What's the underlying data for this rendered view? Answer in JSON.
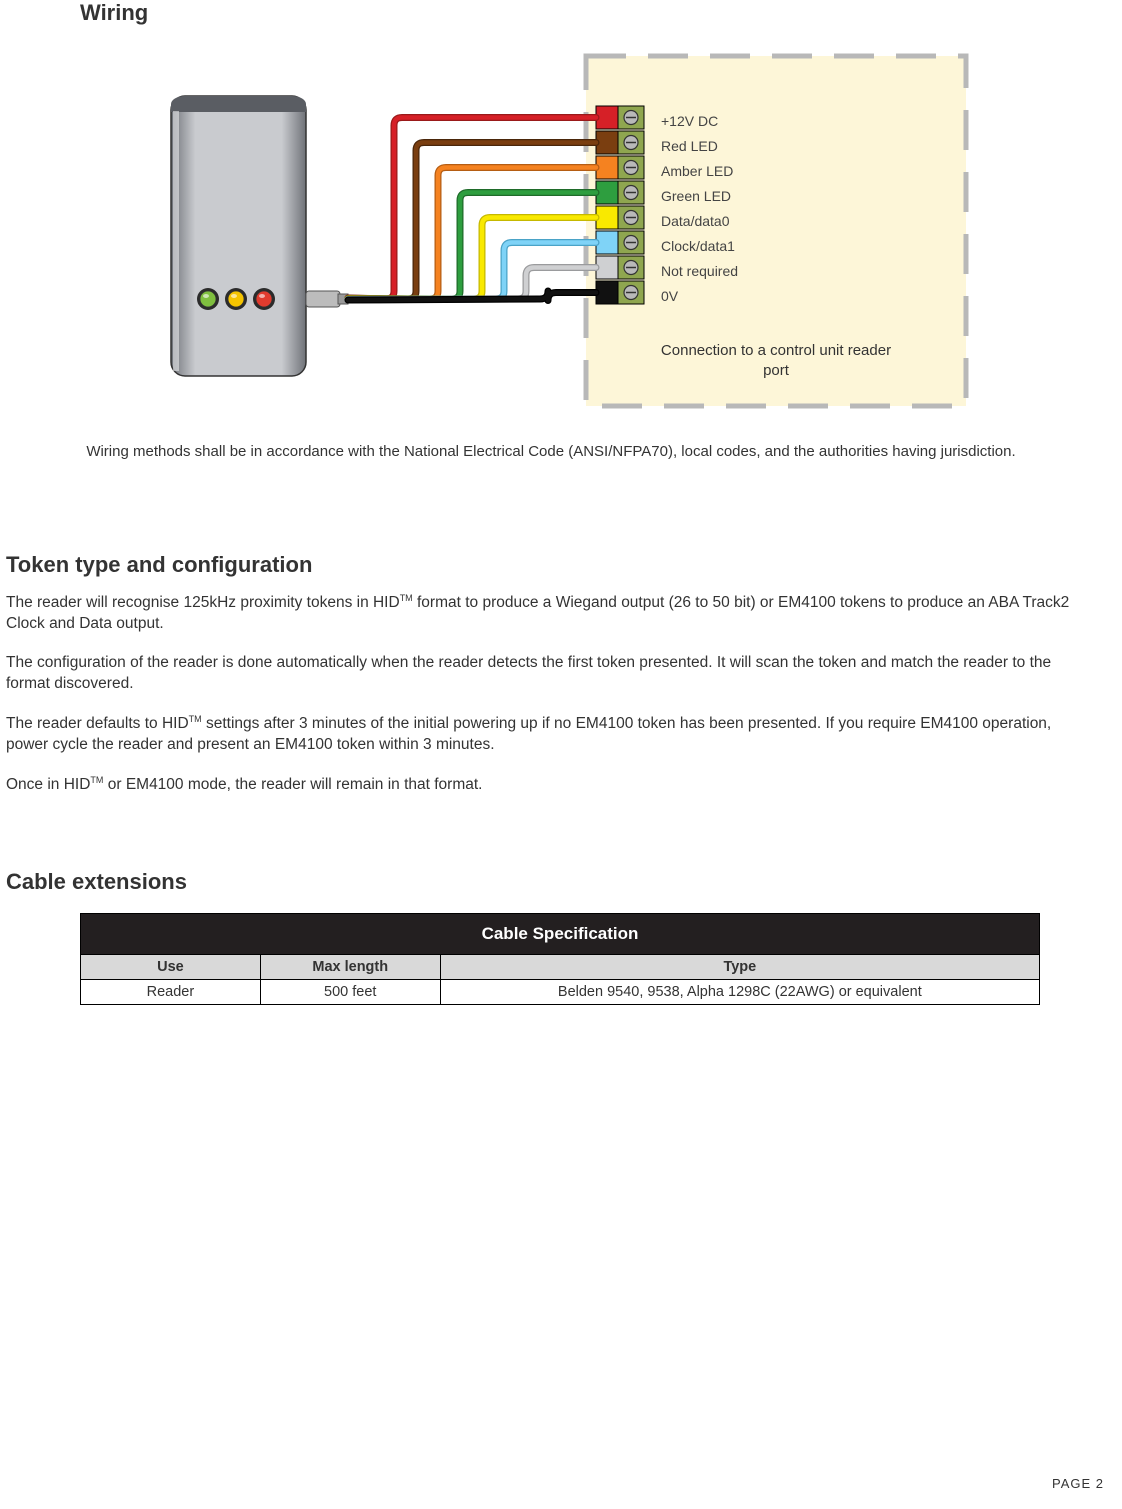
{
  "headings": {
    "wiring": "Wiring",
    "token": "Token type and configuration",
    "cable": "Cable extensions"
  },
  "diagram": {
    "terminals": [
      {
        "label": "+12V DC",
        "block_fill": "#d62027",
        "wire_stroke": "#d62027",
        "wire_shade": "#9a1a1a"
      },
      {
        "label": "Red LED",
        "block_fill": "#7a3e10",
        "wire_stroke": "#7a3e10",
        "wire_shade": "#4a260a"
      },
      {
        "label": "Amber LED",
        "block_fill": "#f58220",
        "wire_stroke": "#f58220",
        "wire_shade": "#b55d13"
      },
      {
        "label": "Green LED",
        "block_fill": "#2e9e3f",
        "wire_stroke": "#2e9e3f",
        "wire_shade": "#1f6b2a"
      },
      {
        "label": "Data/data0",
        "block_fill": "#f9e900",
        "wire_stroke": "#f9e900",
        "wire_shade": "#c5b800"
      },
      {
        "label": "Clock/data1",
        "block_fill": "#7fd3f7",
        "wire_stroke": "#7fd3f7",
        "wire_shade": "#4aa3c7"
      },
      {
        "label": "Not required",
        "block_fill": "#cfd0d2",
        "wire_stroke": "#cfd0d2",
        "wire_shade": "#9a9b9d"
      },
      {
        "label": "0V",
        "block_fill": "#111111",
        "wire_stroke": "#111111",
        "wire_shade": "#000000"
      }
    ],
    "control_unit_label": "Connection to a control unit reader port",
    "reader": {
      "body_fill_light": "#c9cbcf",
      "body_fill_dark": "#6f7278",
      "led_colors": [
        "#7fbf3f",
        "#f5c400",
        "#e23b2e"
      ]
    },
    "panel": {
      "fill": "#fdf6d8",
      "dash_stroke": "#b8b8b8"
    }
  },
  "note": "Wiring methods shall be in accordance with the National Electrical Code (ANSI/NFPA70), local codes, and the authorities having jurisdiction.",
  "token_section": {
    "p1_a": "The reader will recognise 125kHz proximity tokens in HID",
    "p1_b": " format to produce a Wiegand output (26 to 50 bit) or EM4100 tokens to produce an ABA Track2 Clock and Data output.",
    "p2": "The configuration of the reader is done automatically when the reader detects the first token presented. It will scan the token and match the reader to the format discovered.",
    "p3_a": "The reader defaults to HID",
    "p3_b": " settings after 3 minutes of the initial powering up if no EM4100 token has been presented. If you require EM4100 operation, power cycle the reader and present an EM4100 token within 3 minutes.",
    "p4_a": "Once in HID",
    "p4_b": " or EM4100 mode, the reader will remain in that format.",
    "tm": "TM"
  },
  "table": {
    "title": "Cable Specification",
    "headers": {
      "use": "Use",
      "max": "Max length",
      "type": "Type"
    },
    "row": {
      "use": "Reader",
      "max": "500 feet",
      "type": "Belden 9540, 9538, Alpha 1298C (22AWG) or equivalent"
    },
    "col_widths": {
      "use": 180,
      "max": 180,
      "type": 600
    }
  },
  "footer": {
    "page_label": "PAGE  2"
  }
}
